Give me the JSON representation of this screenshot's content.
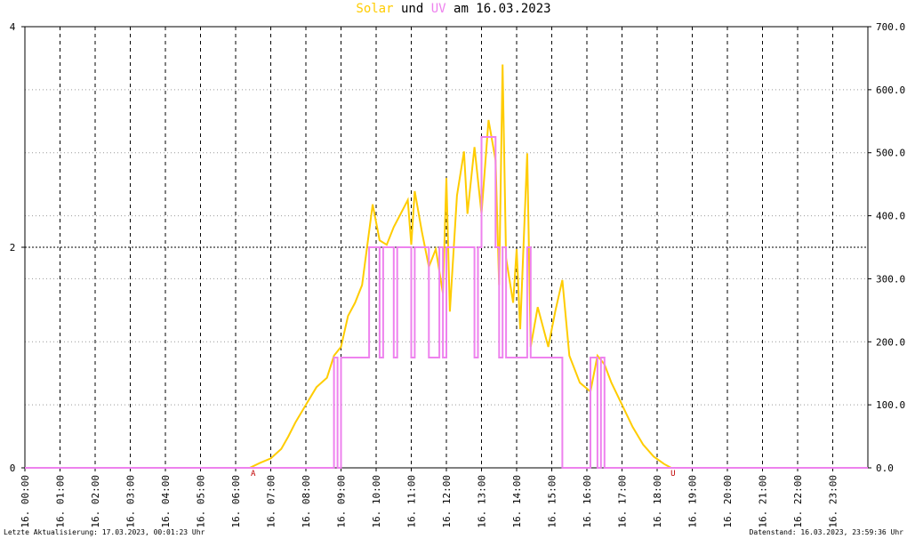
{
  "chart_data": {
    "type": "line",
    "title_words": [
      "und",
      "am 16.03.2023"
    ],
    "xlim": [
      0,
      24
    ],
    "xticks": [
      {
        "value": 0,
        "label": "16. 00:00"
      },
      {
        "value": 1,
        "label": "16. 01:00"
      },
      {
        "value": 2,
        "label": "16. 02:00"
      },
      {
        "value": 3,
        "label": "16. 03:00"
      },
      {
        "value": 4,
        "label": "16. 04:00"
      },
      {
        "value": 5,
        "label": "16. 05:00"
      },
      {
        "value": 6,
        "label": "16. 06:00"
      },
      {
        "value": 7,
        "label": "16. 07:00"
      },
      {
        "value": 8,
        "label": "16. 08:00"
      },
      {
        "value": 9,
        "label": "16. 09:00"
      },
      {
        "value": 10,
        "label": "16. 10:00"
      },
      {
        "value": 11,
        "label": "16. 11:00"
      },
      {
        "value": 12,
        "label": "16. 12:00"
      },
      {
        "value": 13,
        "label": "16. 13:00"
      },
      {
        "value": 14,
        "label": "16. 14:00"
      },
      {
        "value": 15,
        "label": "16. 15:00"
      },
      {
        "value": 16,
        "label": "16. 16:00"
      },
      {
        "value": 17,
        "label": "16. 17:00"
      },
      {
        "value": 18,
        "label": "16. 18:00"
      },
      {
        "value": 19,
        "label": "16. 19:00"
      },
      {
        "value": 20,
        "label": "16. 20:00"
      },
      {
        "value": 21,
        "label": "16. 21:00"
      },
      {
        "value": 22,
        "label": "16. 22:00"
      },
      {
        "value": 23,
        "label": "16. 23:00"
      }
    ],
    "ylim": [
      0,
      4
    ],
    "yticks": [
      0,
      2,
      4
    ],
    "y2lim": [
      0,
      700
    ],
    "y2ticks": [
      {
        "value": 0,
        "label": "0.0"
      },
      {
        "value": 100,
        "label": "100.0"
      },
      {
        "value": 200,
        "label": "200.0"
      },
      {
        "value": 300,
        "label": "300.0"
      },
      {
        "value": 400,
        "label": "400.0"
      },
      {
        "value": 500,
        "label": "500.0"
      },
      {
        "value": 600,
        "label": "600.0"
      },
      {
        "value": 700,
        "label": "700.0"
      }
    ],
    "grid": true,
    "annotations": [
      {
        "text": "A",
        "x": 6.5
      },
      {
        "text": "U",
        "x": 18.45
      }
    ],
    "series": [
      {
        "name": "Solar",
        "color": "#ffcc00",
        "axis": "y2",
        "x": [
          0,
          6.4,
          6.7,
          7.0,
          7.3,
          7.5,
          7.7,
          8.0,
          8.3,
          8.6,
          8.8,
          9.0,
          9.2,
          9.4,
          9.6,
          9.8,
          9.9,
          10.1,
          10.3,
          10.5,
          10.7,
          10.9,
          11.0,
          11.1,
          11.3,
          11.5,
          11.7,
          11.9,
          12.0,
          12.1,
          12.3,
          12.5,
          12.6,
          12.8,
          13.0,
          13.2,
          13.4,
          13.5,
          13.6,
          13.7,
          13.9,
          14.0,
          14.1,
          14.3,
          14.4,
          14.6,
          14.9,
          15.1,
          15.3,
          15.5,
          15.8,
          16.1,
          16.3,
          16.5,
          16.7,
          17.0,
          17.3,
          17.6,
          17.9,
          18.2,
          18.4,
          24
        ],
        "values": [
          0,
          0,
          8,
          15,
          30,
          50,
          72,
          100,
          128,
          143,
          178,
          192,
          241,
          262,
          290,
          375,
          418,
          361,
          354,
          382,
          403,
          425,
          354,
          439,
          375,
          319,
          347,
          277,
          460,
          248,
          432,
          502,
          403,
          509,
          403,
          552,
          488,
          290,
          640,
          333,
          262,
          347,
          220,
          499,
          192,
          255,
          192,
          248,
          298,
          178,
          135,
          121,
          178,
          164,
          135,
          100,
          65,
          37,
          18,
          6,
          0,
          0
        ]
      },
      {
        "name": "UV",
        "color": "#ee82ee",
        "axis": "y",
        "x": [
          0,
          8.8,
          8.8,
          8.9,
          8.9,
          9.0,
          9.0,
          9.8,
          9.8,
          10.1,
          10.1,
          10.2,
          10.2,
          10.5,
          10.5,
          10.6,
          10.6,
          11.0,
          11.0,
          11.1,
          11.1,
          11.5,
          11.5,
          11.8,
          11.8,
          11.9,
          11.9,
          12.0,
          12.0,
          12.8,
          12.8,
          12.9,
          12.9,
          13.0,
          13.0,
          13.4,
          13.4,
          13.5,
          13.5,
          13.6,
          13.6,
          13.7,
          13.7,
          14.3,
          14.3,
          14.4,
          14.4,
          15.3,
          15.3,
          16.1,
          16.1,
          16.3,
          16.3,
          16.4,
          16.4,
          16.5,
          16.5,
          24
        ],
        "values": [
          0,
          0,
          1,
          1,
          0,
          0,
          1,
          1,
          2,
          2,
          1,
          1,
          2,
          2,
          1,
          1,
          2,
          2,
          1,
          1,
          2,
          2,
          1,
          1,
          2,
          2,
          1,
          1,
          2,
          2,
          1,
          1,
          2,
          2,
          3,
          3,
          2,
          2,
          1,
          1,
          2,
          2,
          1,
          1,
          2,
          2,
          1,
          1,
          0,
          0,
          1,
          1,
          0,
          0,
          1,
          1,
          0,
          0
        ]
      }
    ]
  },
  "footer": {
    "left": "Letzte Aktualisierung: 17.03.2023, 00:01:23 Uhr",
    "right": "Datenstand: 16.03.2023, 23:59:36 Uhr"
  }
}
